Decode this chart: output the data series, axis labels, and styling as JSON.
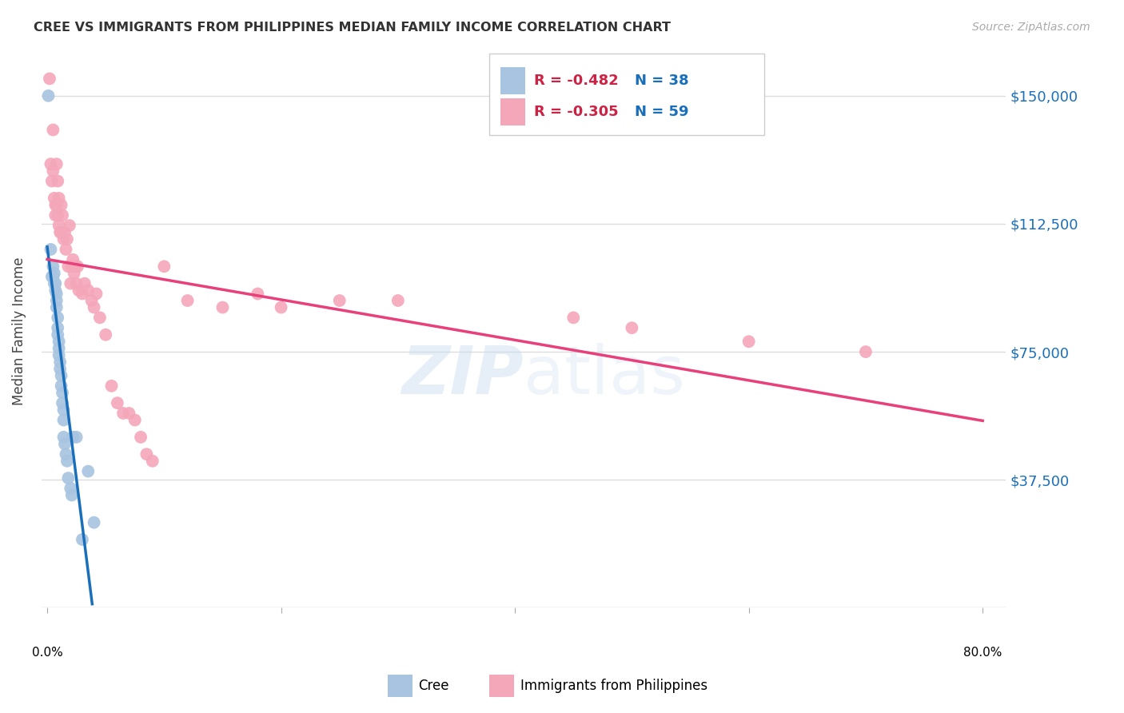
{
  "title": "CREE VS IMMIGRANTS FROM PHILIPPINES MEDIAN FAMILY INCOME CORRELATION CHART",
  "source": "Source: ZipAtlas.com",
  "ylabel": "Median Family Income",
  "yticks": [
    0,
    37500,
    75000,
    112500,
    150000
  ],
  "ytick_labels": [
    "",
    "$37,500",
    "$75,000",
    "$112,500",
    "$150,000"
  ],
  "ylim": [
    0,
    162000
  ],
  "xlim": [
    -0.005,
    0.82
  ],
  "watermark_zip": "ZIP",
  "watermark_atlas": "atlas",
  "legend_R_cree": "-0.482",
  "legend_N_cree": "38",
  "legend_R_phil": "-0.305",
  "legend_N_phil": "59",
  "cree_color": "#a8c4e0",
  "phil_color": "#f4a7b9",
  "cree_line_color": "#1a6fbb",
  "phil_line_color": "#e8407a",
  "background_color": "#ffffff",
  "grid_color": "#dddddd",
  "cree_points_x": [
    0.001,
    0.003,
    0.004,
    0.005,
    0.005,
    0.006,
    0.006,
    0.007,
    0.007,
    0.008,
    0.008,
    0.008,
    0.009,
    0.009,
    0.009,
    0.01,
    0.01,
    0.01,
    0.011,
    0.011,
    0.012,
    0.012,
    0.013,
    0.013,
    0.014,
    0.014,
    0.014,
    0.015,
    0.016,
    0.017,
    0.018,
    0.02,
    0.021,
    0.022,
    0.025,
    0.03,
    0.035,
    0.04
  ],
  "cree_points_y": [
    150000,
    105000,
    97000,
    100000,
    97000,
    98000,
    95000,
    95000,
    93000,
    92000,
    90000,
    88000,
    85000,
    82000,
    80000,
    78000,
    76000,
    74000,
    72000,
    70000,
    68000,
    65000,
    63000,
    60000,
    58000,
    55000,
    50000,
    48000,
    45000,
    43000,
    38000,
    35000,
    33000,
    50000,
    50000,
    20000,
    40000,
    25000
  ],
  "phil_points_x": [
    0.002,
    0.003,
    0.004,
    0.005,
    0.005,
    0.006,
    0.007,
    0.007,
    0.008,
    0.008,
    0.009,
    0.009,
    0.01,
    0.01,
    0.011,
    0.012,
    0.012,
    0.013,
    0.014,
    0.015,
    0.016,
    0.017,
    0.018,
    0.019,
    0.02,
    0.021,
    0.022,
    0.023,
    0.024,
    0.025,
    0.026,
    0.027,
    0.03,
    0.032,
    0.035,
    0.038,
    0.04,
    0.042,
    0.045,
    0.05,
    0.055,
    0.06,
    0.065,
    0.07,
    0.075,
    0.08,
    0.085,
    0.09,
    0.1,
    0.12,
    0.15,
    0.18,
    0.2,
    0.25,
    0.3,
    0.45,
    0.5,
    0.6,
    0.7
  ],
  "phil_points_y": [
    155000,
    130000,
    125000,
    140000,
    128000,
    120000,
    118000,
    115000,
    130000,
    118000,
    125000,
    115000,
    120000,
    112000,
    110000,
    118000,
    110000,
    115000,
    108000,
    110000,
    105000,
    108000,
    100000,
    112000,
    95000,
    100000,
    102000,
    98000,
    100000,
    95000,
    100000,
    93000,
    92000,
    95000,
    93000,
    90000,
    88000,
    92000,
    85000,
    80000,
    65000,
    60000,
    57000,
    57000,
    55000,
    50000,
    45000,
    43000,
    100000,
    90000,
    88000,
    92000,
    88000,
    90000,
    90000,
    85000,
    82000,
    78000,
    75000
  ]
}
